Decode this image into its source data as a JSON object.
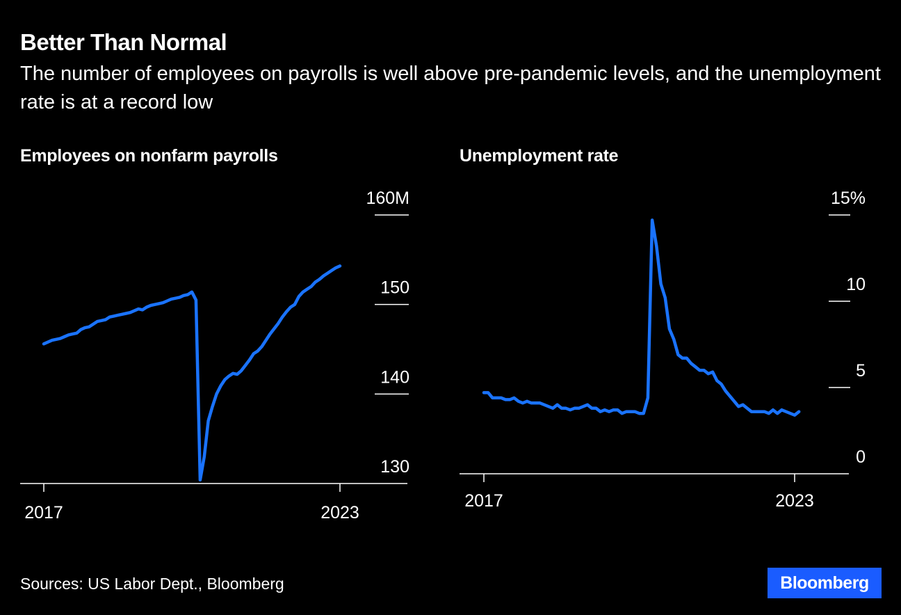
{
  "header": {
    "title": "Better Than Normal",
    "subtitle": "The number of employees on payrolls is well above pre-pandemic levels, and the unemployment rate is at a record low"
  },
  "footer": {
    "source": "Sources: US Labor Dept., Bloomberg",
    "logo_text": "Bloomberg"
  },
  "colors": {
    "background": "#000000",
    "line": "#1a73ff",
    "text": "#ffffff",
    "logo_bg": "#1a5cff"
  },
  "chart_data": [
    {
      "type": "line",
      "title": "Employees on nonfarm payrolls",
      "x_tick_labels": [
        "2017",
        "2023"
      ],
      "y_tick_labels": [
        "160M",
        "150",
        "140",
        "130"
      ],
      "y_ticks": [
        160,
        150,
        140,
        130
      ],
      "ylim": [
        130,
        160
      ],
      "xlim": [
        2017.0,
        2023.0
      ],
      "series": [
        {
          "x": [
            2017.0,
            2017.083,
            2017.167,
            2017.25,
            2017.333,
            2017.417,
            2017.5,
            2017.583,
            2017.667,
            2017.75,
            2017.833,
            2017.917,
            2018.0,
            2018.083,
            2018.167,
            2018.25,
            2018.333,
            2018.417,
            2018.5,
            2018.583,
            2018.667,
            2018.75,
            2018.833,
            2018.917,
            2019.0,
            2019.083,
            2019.167,
            2019.25,
            2019.333,
            2019.417,
            2019.5,
            2019.583,
            2019.667,
            2019.75,
            2019.833,
            2019.917,
            2020.0,
            2020.083,
            2020.167,
            2020.25,
            2020.333,
            2020.417,
            2020.5,
            2020.583,
            2020.667,
            2020.75,
            2020.833,
            2020.917,
            2021.0,
            2021.083,
            2021.167,
            2021.25,
            2021.333,
            2021.417,
            2021.5,
            2021.583,
            2021.667,
            2021.75,
            2021.833,
            2021.917,
            2022.0,
            2022.083,
            2022.167,
            2022.25,
            2022.333,
            2022.417,
            2022.5,
            2022.583,
            2022.667,
            2022.75,
            2022.833,
            2022.917,
            2023.0
          ],
          "values": [
            145.6,
            145.8,
            146.0,
            146.1,
            146.2,
            146.4,
            146.6,
            146.7,
            146.8,
            147.2,
            147.4,
            147.5,
            147.8,
            148.1,
            148.2,
            148.3,
            148.6,
            148.7,
            148.8,
            148.9,
            149.0,
            149.1,
            149.3,
            149.5,
            149.4,
            149.7,
            149.9,
            150.0,
            150.1,
            150.2,
            150.4,
            150.6,
            150.7,
            150.8,
            151.0,
            151.1,
            151.4,
            150.5,
            130.4,
            133.0,
            137.0,
            138.6,
            140.0,
            140.9,
            141.6,
            142.0,
            142.3,
            142.2,
            142.6,
            143.2,
            143.8,
            144.5,
            144.8,
            145.3,
            146.0,
            146.7,
            147.3,
            147.9,
            148.6,
            149.2,
            149.7,
            150.0,
            150.9,
            151.4,
            151.7,
            152.0,
            152.5,
            152.8,
            153.2,
            153.5,
            153.8,
            154.1,
            154.3
          ]
        }
      ]
    },
    {
      "type": "line",
      "title": "Unemployment rate",
      "x_tick_labels": [
        "2017",
        "2023"
      ],
      "y_tick_labels": [
        "15%",
        "10",
        "5",
        "0"
      ],
      "y_ticks": [
        15,
        10,
        5,
        0
      ],
      "ylim": [
        0,
        15
      ],
      "xlim": [
        2017.0,
        2023.0
      ],
      "series": [
        {
          "x": [
            2017.0,
            2017.083,
            2017.167,
            2017.25,
            2017.333,
            2017.417,
            2017.5,
            2017.583,
            2017.667,
            2017.75,
            2017.833,
            2017.917,
            2018.0,
            2018.083,
            2018.167,
            2018.25,
            2018.333,
            2018.417,
            2018.5,
            2018.583,
            2018.667,
            2018.75,
            2018.833,
            2018.917,
            2019.0,
            2019.083,
            2019.167,
            2019.25,
            2019.333,
            2019.417,
            2019.5,
            2019.583,
            2019.667,
            2019.75,
            2019.833,
            2019.917,
            2020.0,
            2020.083,
            2020.167,
            2020.25,
            2020.333,
            2020.417,
            2020.5,
            2020.583,
            2020.667,
            2020.75,
            2020.833,
            2020.917,
            2021.0,
            2021.083,
            2021.167,
            2021.25,
            2021.333,
            2021.417,
            2021.5,
            2021.583,
            2021.667,
            2021.75,
            2021.833,
            2021.917,
            2022.0,
            2022.083,
            2022.167,
            2022.25,
            2022.333,
            2022.417,
            2022.5,
            2022.583,
            2022.667,
            2022.75,
            2022.833,
            2022.917,
            2023.0,
            2023.083
          ],
          "values": [
            4.7,
            4.7,
            4.4,
            4.4,
            4.4,
            4.3,
            4.3,
            4.4,
            4.2,
            4.1,
            4.2,
            4.1,
            4.1,
            4.1,
            4.0,
            3.9,
            3.8,
            4.0,
            3.8,
            3.8,
            3.7,
            3.8,
            3.8,
            3.9,
            4.0,
            3.8,
            3.8,
            3.6,
            3.7,
            3.6,
            3.7,
            3.7,
            3.5,
            3.6,
            3.6,
            3.6,
            3.5,
            3.5,
            4.4,
            14.7,
            13.2,
            11.0,
            10.2,
            8.4,
            7.8,
            6.9,
            6.7,
            6.7,
            6.4,
            6.2,
            6.0,
            6.0,
            5.8,
            5.9,
            5.4,
            5.2,
            4.8,
            4.5,
            4.2,
            3.9,
            4.0,
            3.8,
            3.6,
            3.6,
            3.6,
            3.6,
            3.5,
            3.7,
            3.5,
            3.7,
            3.6,
            3.5,
            3.4,
            3.6
          ]
        }
      ]
    }
  ]
}
